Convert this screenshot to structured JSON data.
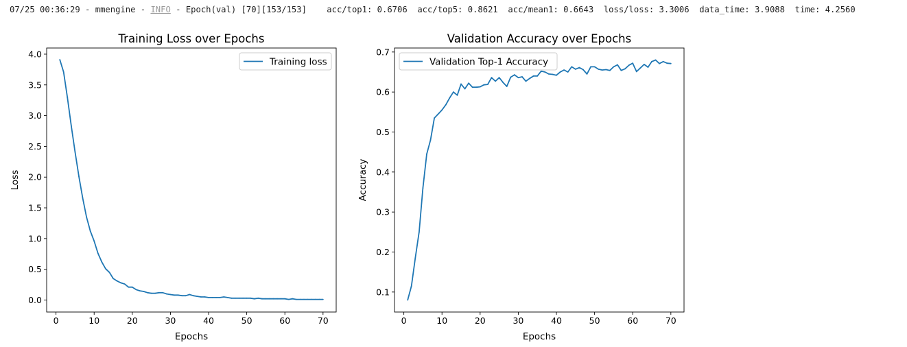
{
  "log": {
    "prefix": "07/25 00:36:29 - mmengine - ",
    "level": "INFO",
    "message": " - Epoch(val) [70][153/153]    acc/top1: 0.6706  acc/top5: 0.8621  acc/mean1: 0.6643  loss/loss: 3.3006  data_time: 3.9088  time: 4.2560"
  },
  "colors": {
    "line": "#1f77b4",
    "axis": "#000000",
    "legend_border": "#cccccc"
  },
  "chart_data": [
    {
      "type": "line",
      "title": "Training Loss over Epochs",
      "xlabel": "Epochs",
      "ylabel": "Loss",
      "xlim": [
        -2.45,
        73.45
      ],
      "ylim": [
        -0.195,
        4.1
      ],
      "xticks": [
        0,
        10,
        20,
        30,
        40,
        50,
        60,
        70
      ],
      "xtick_labels": [
        "0",
        "10",
        "20",
        "30",
        "40",
        "50",
        "60",
        "70"
      ],
      "yticks": [
        0.0,
        0.5,
        1.0,
        1.5,
        2.0,
        2.5,
        3.0,
        3.5,
        4.0
      ],
      "ytick_labels": [
        "0.0",
        "0.5",
        "1.0",
        "1.5",
        "2.0",
        "2.5",
        "3.0",
        "3.5",
        "4.0"
      ],
      "grid": false,
      "legend_position": "upper right",
      "series": [
        {
          "name": "Training loss",
          "x": [
            1,
            2,
            3,
            4,
            5,
            6,
            7,
            8,
            9,
            10,
            11,
            12,
            13,
            14,
            15,
            16,
            17,
            18,
            19,
            20,
            21,
            22,
            23,
            24,
            25,
            26,
            27,
            28,
            29,
            30,
            31,
            32,
            33,
            34,
            35,
            36,
            37,
            38,
            39,
            40,
            41,
            42,
            43,
            44,
            45,
            46,
            47,
            48,
            49,
            50,
            51,
            52,
            53,
            54,
            55,
            56,
            57,
            58,
            59,
            60,
            61,
            62,
            63,
            64,
            65,
            66,
            67,
            68,
            69,
            70
          ],
          "y": [
            3.91,
            3.71,
            3.29,
            2.83,
            2.41,
            2.01,
            1.66,
            1.35,
            1.12,
            0.96,
            0.76,
            0.62,
            0.51,
            0.45,
            0.35,
            0.31,
            0.28,
            0.26,
            0.21,
            0.21,
            0.17,
            0.15,
            0.14,
            0.12,
            0.11,
            0.11,
            0.12,
            0.12,
            0.1,
            0.09,
            0.08,
            0.08,
            0.07,
            0.07,
            0.09,
            0.07,
            0.06,
            0.05,
            0.05,
            0.04,
            0.04,
            0.04,
            0.04,
            0.05,
            0.04,
            0.03,
            0.03,
            0.03,
            0.03,
            0.03,
            0.03,
            0.02,
            0.03,
            0.02,
            0.02,
            0.02,
            0.02,
            0.02,
            0.02,
            0.02,
            0.01,
            0.02,
            0.01,
            0.01,
            0.01,
            0.01,
            0.01,
            0.01,
            0.01,
            0.01
          ]
        }
      ]
    },
    {
      "type": "line",
      "title": "Validation Accuracy over Epochs",
      "xlabel": "Epochs",
      "ylabel": "Accuracy",
      "xlim": [
        -2.45,
        73.45
      ],
      "ylim": [
        0.05,
        0.71
      ],
      "xticks": [
        0,
        10,
        20,
        30,
        40,
        50,
        60,
        70
      ],
      "xtick_labels": [
        "0",
        "10",
        "20",
        "30",
        "40",
        "50",
        "60",
        "70"
      ],
      "yticks": [
        0.1,
        0.2,
        0.3,
        0.4,
        0.5,
        0.6,
        0.7
      ],
      "ytick_labels": [
        "0.1",
        "0.2",
        "0.3",
        "0.4",
        "0.5",
        "0.6",
        "0.7"
      ],
      "grid": false,
      "legend_position": "upper left",
      "series": [
        {
          "name": "Validation Top-1 Accuracy",
          "x": [
            1,
            2,
            3,
            4,
            5,
            6,
            7,
            8,
            9,
            10,
            11,
            12,
            13,
            14,
            15,
            16,
            17,
            18,
            19,
            20,
            21,
            22,
            23,
            24,
            25,
            26,
            27,
            28,
            29,
            30,
            31,
            32,
            33,
            34,
            35,
            36,
            37,
            38,
            39,
            40,
            41,
            42,
            43,
            44,
            45,
            46,
            47,
            48,
            49,
            50,
            51,
            52,
            53,
            54,
            55,
            56,
            57,
            58,
            59,
            60,
            61,
            62,
            63,
            64,
            65,
            66,
            67,
            68,
            69,
            70
          ],
          "y": [
            0.08,
            0.115,
            0.185,
            0.25,
            0.36,
            0.445,
            0.48,
            0.535,
            0.545,
            0.555,
            0.568,
            0.585,
            0.6,
            0.592,
            0.62,
            0.608,
            0.622,
            0.612,
            0.612,
            0.613,
            0.618,
            0.619,
            0.636,
            0.627,
            0.636,
            0.624,
            0.614,
            0.637,
            0.643,
            0.636,
            0.638,
            0.627,
            0.634,
            0.64,
            0.64,
            0.652,
            0.65,
            0.645,
            0.644,
            0.642,
            0.65,
            0.655,
            0.65,
            0.663,
            0.657,
            0.661,
            0.656,
            0.645,
            0.663,
            0.663,
            0.657,
            0.655,
            0.656,
            0.654,
            0.663,
            0.668,
            0.654,
            0.658,
            0.667,
            0.672,
            0.651,
            0.66,
            0.669,
            0.662,
            0.676,
            0.68,
            0.671,
            0.676,
            0.672,
            0.671
          ]
        }
      ]
    }
  ]
}
